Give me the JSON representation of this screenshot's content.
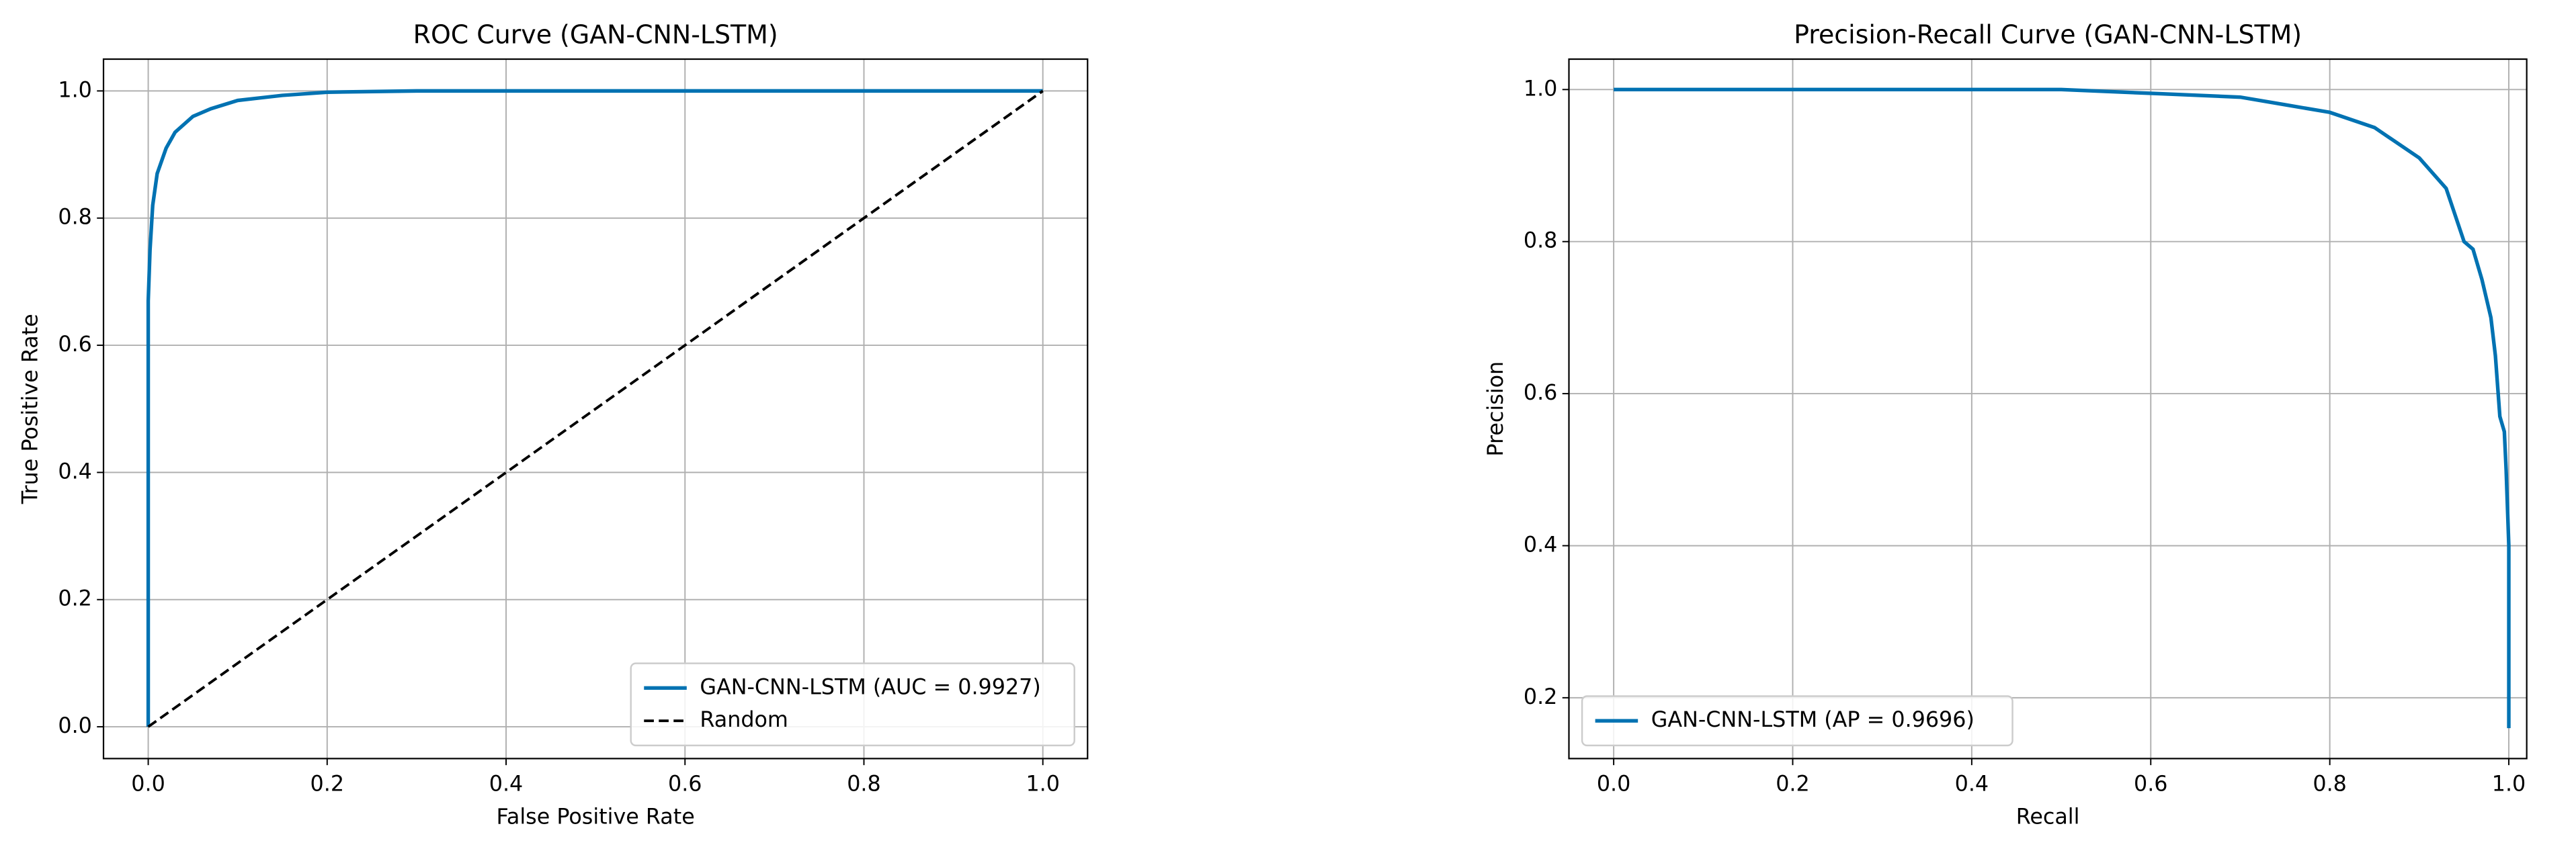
{
  "chart_data": [
    {
      "type": "line",
      "title": "ROC Curve (GAN-CNN-LSTM)",
      "xlabel": "False Positive Rate",
      "ylabel": "True Positive Rate",
      "xlim": [
        -0.05,
        1.05
      ],
      "ylim": [
        -0.05,
        1.05
      ],
      "xticks": [
        {
          "value": 0,
          "label": "0.0"
        },
        {
          "value": 0.2,
          "label": "0.2"
        },
        {
          "value": 0.4,
          "label": "0.4"
        },
        {
          "value": 0.6,
          "label": "0.6"
        },
        {
          "value": 0.8,
          "label": "0.8"
        },
        {
          "value": 1,
          "label": "1.0"
        }
      ],
      "yticks": [
        {
          "value": 0,
          "label": "0.0"
        },
        {
          "value": 0.2,
          "label": "0.2"
        },
        {
          "value": 0.4,
          "label": "0.4"
        },
        {
          "value": 0.6,
          "label": "0.6"
        },
        {
          "value": 0.8,
          "label": "0.8"
        },
        {
          "value": 1,
          "label": "1.0"
        }
      ],
      "grid": true,
      "legend": "lower right",
      "series": [
        {
          "name": "GAN-CNN-LSTM (AUC = 0.9927)",
          "color": "#0072b2",
          "style": "solid",
          "x": [
            0,
            0,
            0.002,
            0.005,
            0.01,
            0.02,
            0.03,
            0.05,
            0.07,
            0.1,
            0.15,
            0.2,
            0.3,
            1
          ],
          "values": [
            0,
            0.67,
            0.75,
            0.82,
            0.87,
            0.91,
            0.935,
            0.96,
            0.972,
            0.985,
            0.993,
            0.998,
            1,
            1
          ]
        },
        {
          "name": "Random",
          "color": "#000000",
          "style": "dashed",
          "x": [
            0,
            1
          ],
          "values": [
            0,
            1
          ]
        }
      ]
    },
    {
      "type": "line",
      "title": "Precision-Recall Curve (GAN-CNN-LSTM)",
      "xlabel": "Recall",
      "ylabel": "Precision",
      "xlim": [
        -0.05,
        1.02
      ],
      "ylim": [
        0.12,
        1.04
      ],
      "xticks": [
        {
          "value": 0,
          "label": "0.0"
        },
        {
          "value": 0.2,
          "label": "0.2"
        },
        {
          "value": 0.4,
          "label": "0.4"
        },
        {
          "value": 0.6,
          "label": "0.6"
        },
        {
          "value": 0.8,
          "label": "0.8"
        },
        {
          "value": 1,
          "label": "1.0"
        }
      ],
      "yticks": [
        {
          "value": 0.2,
          "label": "0.2"
        },
        {
          "value": 0.4,
          "label": "0.4"
        },
        {
          "value": 0.6,
          "label": "0.6"
        },
        {
          "value": 0.8,
          "label": "0.8"
        },
        {
          "value": 1,
          "label": "1.0"
        }
      ],
      "grid": true,
      "legend": "lower left",
      "series": [
        {
          "name": "GAN-CNN-LSTM (AP = 0.9696)",
          "color": "#0072b2",
          "style": "solid",
          "x": [
            0,
            0.5,
            0.6,
            0.7,
            0.75,
            0.8,
            0.85,
            0.9,
            0.93,
            0.95,
            0.96,
            0.97,
            0.98,
            0.985,
            0.99,
            0.995,
            0.997,
            1,
            1
          ],
          "values": [
            1,
            1,
            0.995,
            0.99,
            0.98,
            0.97,
            0.95,
            0.91,
            0.87,
            0.8,
            0.79,
            0.75,
            0.7,
            0.65,
            0.57,
            0.55,
            0.5,
            0.4,
            0.16
          ]
        }
      ]
    }
  ]
}
